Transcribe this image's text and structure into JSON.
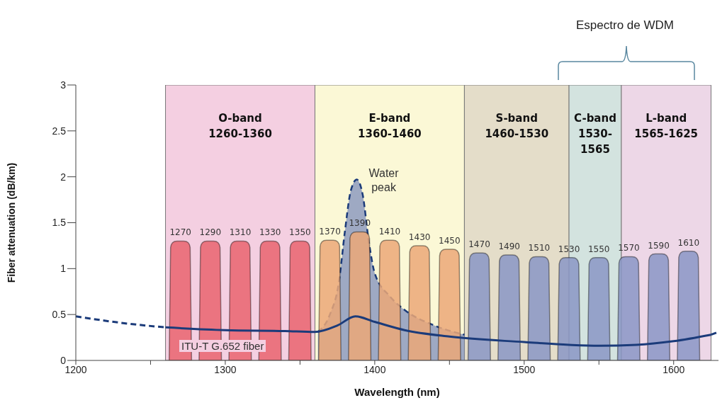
{
  "chart_data": {
    "type": "line",
    "xlabel": "Wavelength (nm)",
    "ylabel": "Fiber attenuation (dB/km)",
    "xlim": [
      1200,
      1630
    ],
    "xticks": [
      1200,
      {
        "value": 1250,
        "label": null
      },
      1300,
      {
        "value": 1350,
        "label": null
      },
      1400,
      {
        "value": 1450,
        "label": null
      },
      1500,
      {
        "value": 1550,
        "label": null
      },
      1600
    ],
    "ylim": [
      0,
      3
    ],
    "yticks": [
      0,
      0.5,
      1,
      1.5,
      2,
      2.5,
      3
    ],
    "grid": false,
    "legend": false,
    "annotations": [
      "Espectro de WDM",
      "ITU-T G.652 fiber",
      {
        "text": "Water peak",
        "x": 1388,
        "y": 1.97
      },
      {
        "text": "1270",
        "x": 1270,
        "y": 1.3
      },
      {
        "text": "1290",
        "x": 1290,
        "y": 1.3
      },
      {
        "text": "1310",
        "x": 1310,
        "y": 1.3
      },
      {
        "text": "1330",
        "x": 1330,
        "y": 1.3
      },
      {
        "text": "1350",
        "x": 1350,
        "y": 1.3
      },
      {
        "text": "1370",
        "x": 1370,
        "y": 1.31
      },
      {
        "text": "1390",
        "x": 1390,
        "y": 1.4
      },
      {
        "text": "1410",
        "x": 1410,
        "y": 1.31
      },
      {
        "text": "1430",
        "x": 1430,
        "y": 1.25
      },
      {
        "text": "1450",
        "x": 1450,
        "y": 1.21
      },
      {
        "text": "1470",
        "x": 1470,
        "y": 1.17
      },
      {
        "text": "1490",
        "x": 1490,
        "y": 1.15
      },
      {
        "text": "1510",
        "x": 1510,
        "y": 1.13
      },
      {
        "text": "1530",
        "x": 1530,
        "y": 1.12
      },
      {
        "text": "1550",
        "x": 1550,
        "y": 1.12
      },
      {
        "text": "1570",
        "x": 1570,
        "y": 1.13
      },
      {
        "text": "1590",
        "x": 1590,
        "y": 1.16
      },
      {
        "text": "1610",
        "x": 1610,
        "y": 1.19
      }
    ],
    "bands": [
      {
        "axis": "x",
        "from": 1260,
        "to": 1360,
        "label": "O-band 1260-1360",
        "color": "#f4cfe1"
      },
      {
        "axis": "x",
        "from": 1360,
        "to": 1460,
        "label": "E-band 1360-1460",
        "color": "#fbf8d6"
      },
      {
        "axis": "x",
        "from": 1460,
        "to": 1530,
        "label": "S-band 1460-1530",
        "color": "#e4ddc9"
      },
      {
        "axis": "x",
        "from": 1530,
        "to": 1565,
        "label": "C-band 1530-1565",
        "color": "#d3e3df"
      },
      {
        "axis": "x",
        "from": 1565,
        "to": 1625,
        "label": "L-band 1565-1625",
        "color": "#edd7e7"
      }
    ],
    "series": [
      {
        "type": "bar",
        "x": [
          1270,
          1290,
          1310,
          1330,
          1350,
          1370,
          1390,
          1410,
          1430,
          1450,
          1470,
          1490,
          1510,
          1530,
          1550,
          1570,
          1590,
          1610
        ],
        "values": [
          1.3,
          1.3,
          1.3,
          1.3,
          1.3,
          1.31,
          1.4,
          1.31,
          1.25,
          1.21,
          1.17,
          1.15,
          1.13,
          1.12,
          1.12,
          1.13,
          1.16,
          1.19
        ],
        "colors": [
          "#e9646f",
          "#e9646f",
          "#e9646f",
          "#e9646f",
          "#e9646f",
          "#eba878",
          "#eba878",
          "#eba878",
          "#eba878",
          "#eba878",
          "#8a97c6",
          "#8a97c6",
          "#8a97c6",
          "#8a97c6",
          "#8a97c6",
          "#8a97c6",
          "#8a97c6",
          "#8a97c6"
        ]
      },
      {
        "type": "area",
        "x": [
          1362,
          1370,
          1376,
          1380,
          1384,
          1388,
          1392,
          1396,
          1400,
          1410,
          1420,
          1440,
          1460
        ],
        "values": [
          0.31,
          0.5,
          0.85,
          1.4,
          1.85,
          1.97,
          1.8,
          1.3,
          0.95,
          0.7,
          0.55,
          0.38,
          0.28
        ],
        "color": "#7f8fbc",
        "line_style": "dashed"
      },
      {
        "x": [
          1260,
          1300,
          1340,
          1360,
          1375,
          1387,
          1400,
          1420,
          1450,
          1500,
          1530,
          1550,
          1575,
          1600,
          1625
        ],
        "values": [
          0.36,
          0.33,
          0.32,
          0.31,
          0.38,
          0.48,
          0.42,
          0.33,
          0.26,
          0.2,
          0.17,
          0.16,
          0.17,
          0.21,
          0.28
        ],
        "color": "#1b3b7a",
        "line_style": "solid"
      },
      {
        "x": [
          1200,
          1230,
          1260,
          1440,
          1625,
          1630
        ],
        "values": [
          0.48,
          0.41,
          0.36,
          null,
          0.28,
          0.31
        ],
        "color": "#1b3b7a",
        "line_style": "dashed"
      }
    ]
  }
}
